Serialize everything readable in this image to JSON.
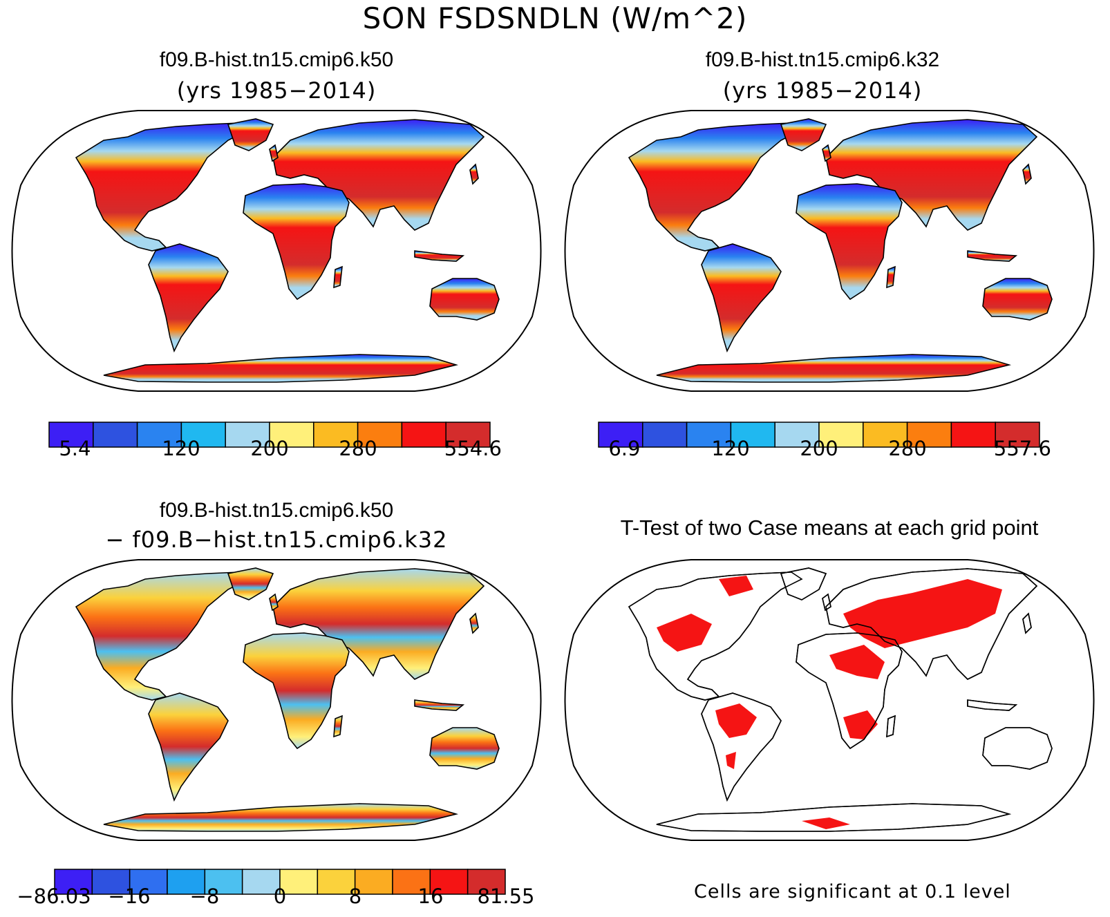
{
  "main_title": "SON FSDSNDLN (W/m^2)",
  "panels": [
    {
      "title": "f09.B-hist.tn15.cmip6.k50",
      "subtitle": "(yrs 1985−2014)",
      "colorbar": {
        "colors": [
          "#3d1ff5",
          "#2e52e0",
          "#2a83f0",
          "#20b8f0",
          "#a6d8f0",
          "#fff07a",
          "#fbbb22",
          "#fb7e0f",
          "#f51414",
          "#d42c2c"
        ],
        "labels": [
          "5.4",
          "120",
          "200",
          "280",
          "554.6"
        ]
      }
    },
    {
      "title": "f09.B-hist.tn15.cmip6.k32",
      "subtitle": "(yrs 1985−2014)",
      "colorbar": {
        "colors": [
          "#3d1ff5",
          "#2e52e0",
          "#2a83f0",
          "#20b8f0",
          "#a6d8f0",
          "#fff07a",
          "#fbbb22",
          "#fb7e0f",
          "#f51414",
          "#d42c2c"
        ],
        "labels": [
          "6.9",
          "120",
          "200",
          "280",
          "557.6"
        ]
      }
    },
    {
      "title": "f09.B-hist.tn15.cmip6.k50",
      "subtitle": "− f09.B−hist.tn15.cmip6.k32",
      "colorbar": {
        "colors": [
          "#3d1ff5",
          "#2e52e0",
          "#2f6ff0",
          "#1ea0f0",
          "#4cc0f0",
          "#a6d8f0",
          "#fff07a",
          "#fbd23c",
          "#fbac22",
          "#fb7215",
          "#f51414",
          "#d42c2c"
        ],
        "labels": [
          "−86.03",
          "−16",
          "−8",
          "0",
          "8",
          "16",
          "81.55"
        ]
      }
    },
    {
      "title": "T-Test of two Case means at each grid point",
      "footnote": "Cells are significant at 0.1 level",
      "sig_color": "#f51414"
    }
  ]
}
